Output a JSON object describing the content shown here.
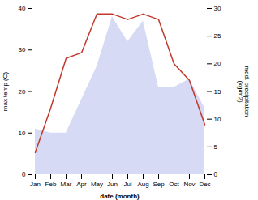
{
  "chart_data": {
    "type": "area",
    "categories": [
      "Jan",
      "Feb",
      "Mar",
      "Apr",
      "May",
      "Jun",
      "Jul",
      "Aug",
      "Sep",
      "Oct",
      "Nov",
      "Dec"
    ],
    "xlabel": "date (month)",
    "ylabel": "max temp (C)",
    "y2label": "med. precipitation\n(kg/m2)",
    "ylim": [
      0,
      40
    ],
    "yticks": [
      0,
      10,
      20,
      30,
      40
    ],
    "y2lim": [
      0,
      30
    ],
    "y2ticks": [
      0,
      5,
      10,
      15,
      20,
      25,
      30
    ],
    "grid": false,
    "series": [
      {
        "type": "area",
        "color": "#c5caf0",
        "values": [
          11,
          10,
          10,
          18,
          26,
          38,
          32,
          37,
          21,
          21,
          23,
          16
        ]
      },
      {
        "type": "line",
        "color": "#c0392b",
        "axis": "y2",
        "values": [
          4,
          12,
          21,
          22,
          29,
          29,
          28,
          29,
          28,
          20,
          17,
          9
        ]
      }
    ]
  }
}
